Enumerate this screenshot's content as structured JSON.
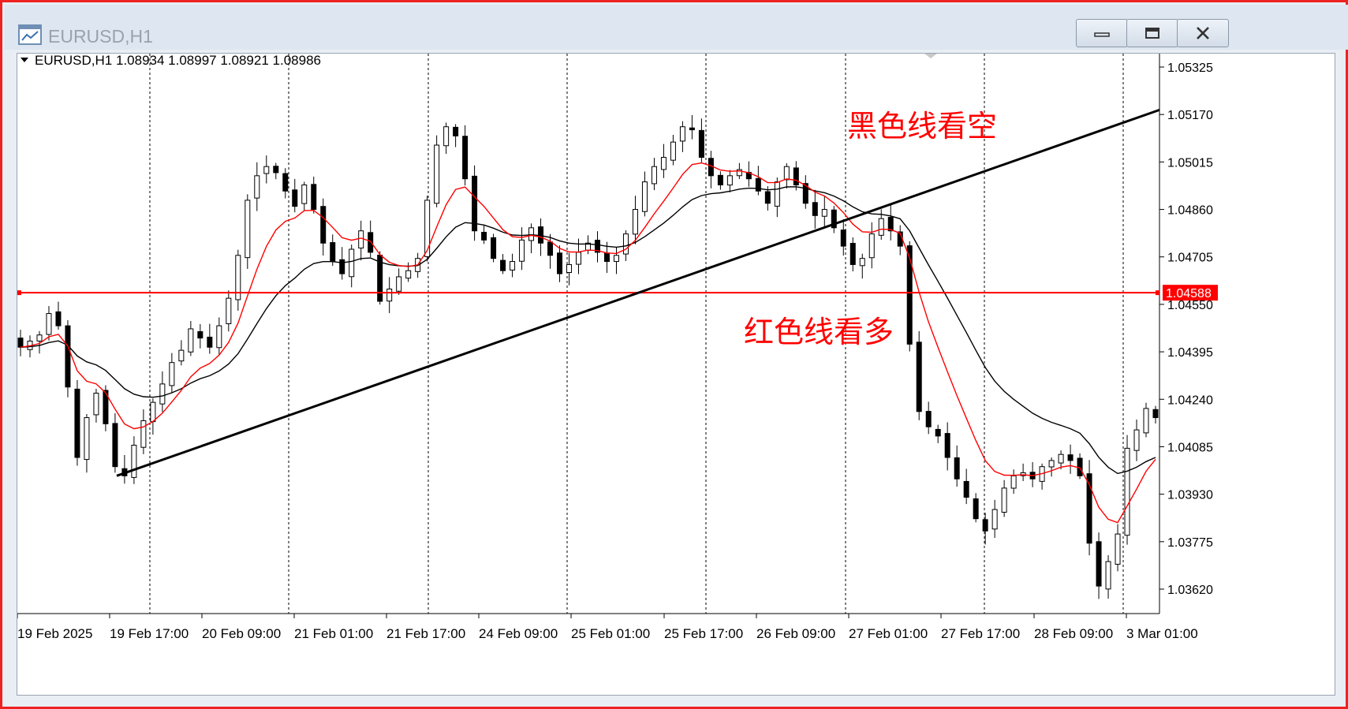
{
  "window": {
    "title": "EURUSD,H1",
    "minimize_icon": "minimize-icon",
    "maximize_icon": "restore-icon",
    "close_icon": "close-icon"
  },
  "chart_header": {
    "symbol": "EURUSD,H1",
    "ohlc": "1.08934 1.08997 1.08921 1.08986"
  },
  "annotations": {
    "black_line": "黑色线看空",
    "red_line": "红色线看多"
  },
  "colors": {
    "bullish": "#ffffff",
    "bearish": "#000000",
    "fast_ma": "#ff0000",
    "slow_ma": "#000000",
    "hline": "#ff0000",
    "trendline": "#000000",
    "price_tag_bg": "#ff0000"
  },
  "chart_data": {
    "type": "candlestick",
    "symbol": "EURUSD",
    "timeframe": "H1",
    "ylim": [
      1.0356,
      1.0537
    ],
    "y_ticks": [
      "1.05325",
      "1.05170",
      "1.05015",
      "1.04860",
      "1.04705",
      "1.04550",
      "1.04395",
      "1.04240",
      "1.04085",
      "1.03930",
      "1.03775",
      "1.03620"
    ],
    "x_ticks": [
      "19 Feb 2025",
      "19 Feb 17:00",
      "20 Feb 09:00",
      "21 Feb 01:00",
      "21 Feb 17:00",
      "24 Feb 09:00",
      "25 Feb 01:00",
      "25 Feb 17:00",
      "26 Feb 09:00",
      "27 Feb 01:00",
      "27 Feb 17:00",
      "28 Feb 09:00",
      "3 Mar 01:00"
    ],
    "grid": "vertical dotted",
    "horizontal_line": {
      "price": 1.04588,
      "label": "1.04588"
    },
    "trendline": {
      "from": {
        "x": "19 Feb 2025 ~12:00",
        "price": 1.0399
      },
      "to": {
        "x": "3 Mar 2025 ~05:00",
        "price": 1.0518
      }
    },
    "close_path": [
      1.0441,
      1.0443,
      1.0445,
      1.0452,
      1.0448,
      1.0428,
      1.0405,
      1.0418,
      1.0426,
      1.0416,
      1.0402,
      1.0399,
      1.0409,
      1.0417,
      1.0423,
      1.0429,
      1.0436,
      1.044,
      1.0447,
      1.0444,
      1.0441,
      1.0448,
      1.0457,
      1.0471,
      1.0489,
      1.0497,
      1.05,
      1.0498,
      1.0492,
      1.0487,
      1.0494,
      1.0486,
      1.0475,
      1.0469,
      1.0465,
      1.0473,
      1.0479,
      1.0472,
      1.0456,
      1.046,
      1.0464,
      1.0466,
      1.047,
      1.0489,
      1.0507,
      1.0513,
      1.051,
      1.0496,
      1.0479,
      1.0476,
      1.047,
      1.0466,
      1.0469,
      1.0476,
      1.048,
      1.0475,
      1.0471,
      1.0465,
      1.0468,
      1.0472,
      1.0475,
      1.0472,
      1.0469,
      1.0471,
      1.0478,
      1.0486,
      1.0495,
      1.05,
      1.0503,
      1.0508,
      1.0513,
      1.0512,
      1.0503,
      1.0497,
      1.0494,
      1.0497,
      1.0499,
      1.0496,
      1.0492,
      1.0488,
      1.0495,
      1.05,
      1.0494,
      1.0488,
      1.0484,
      1.0486,
      1.048,
      1.0474,
      1.0468,
      1.047,
      1.0478,
      1.0483,
      1.0479,
      1.0474,
      1.0442,
      1.042,
      1.0415,
      1.0412,
      1.0405,
      1.0398,
      1.0392,
      1.0385,
      1.0381,
      1.0388,
      1.0395,
      1.0399,
      1.04,
      1.0398,
      1.0402,
      1.0404,
      1.0406,
      1.0404,
      1.0399,
      1.0377,
      1.0363,
      1.0371,
      1.038,
      1.0408,
      1.0414,
      1.0421,
      1.0418
    ],
    "series": [
      {
        "name": "",
        "kind": "moving average",
        "color": "#ff0000",
        "values": []
      },
      {
        "name": "",
        "kind": "moving average",
        "color": "#000000",
        "values": []
      }
    ]
  }
}
